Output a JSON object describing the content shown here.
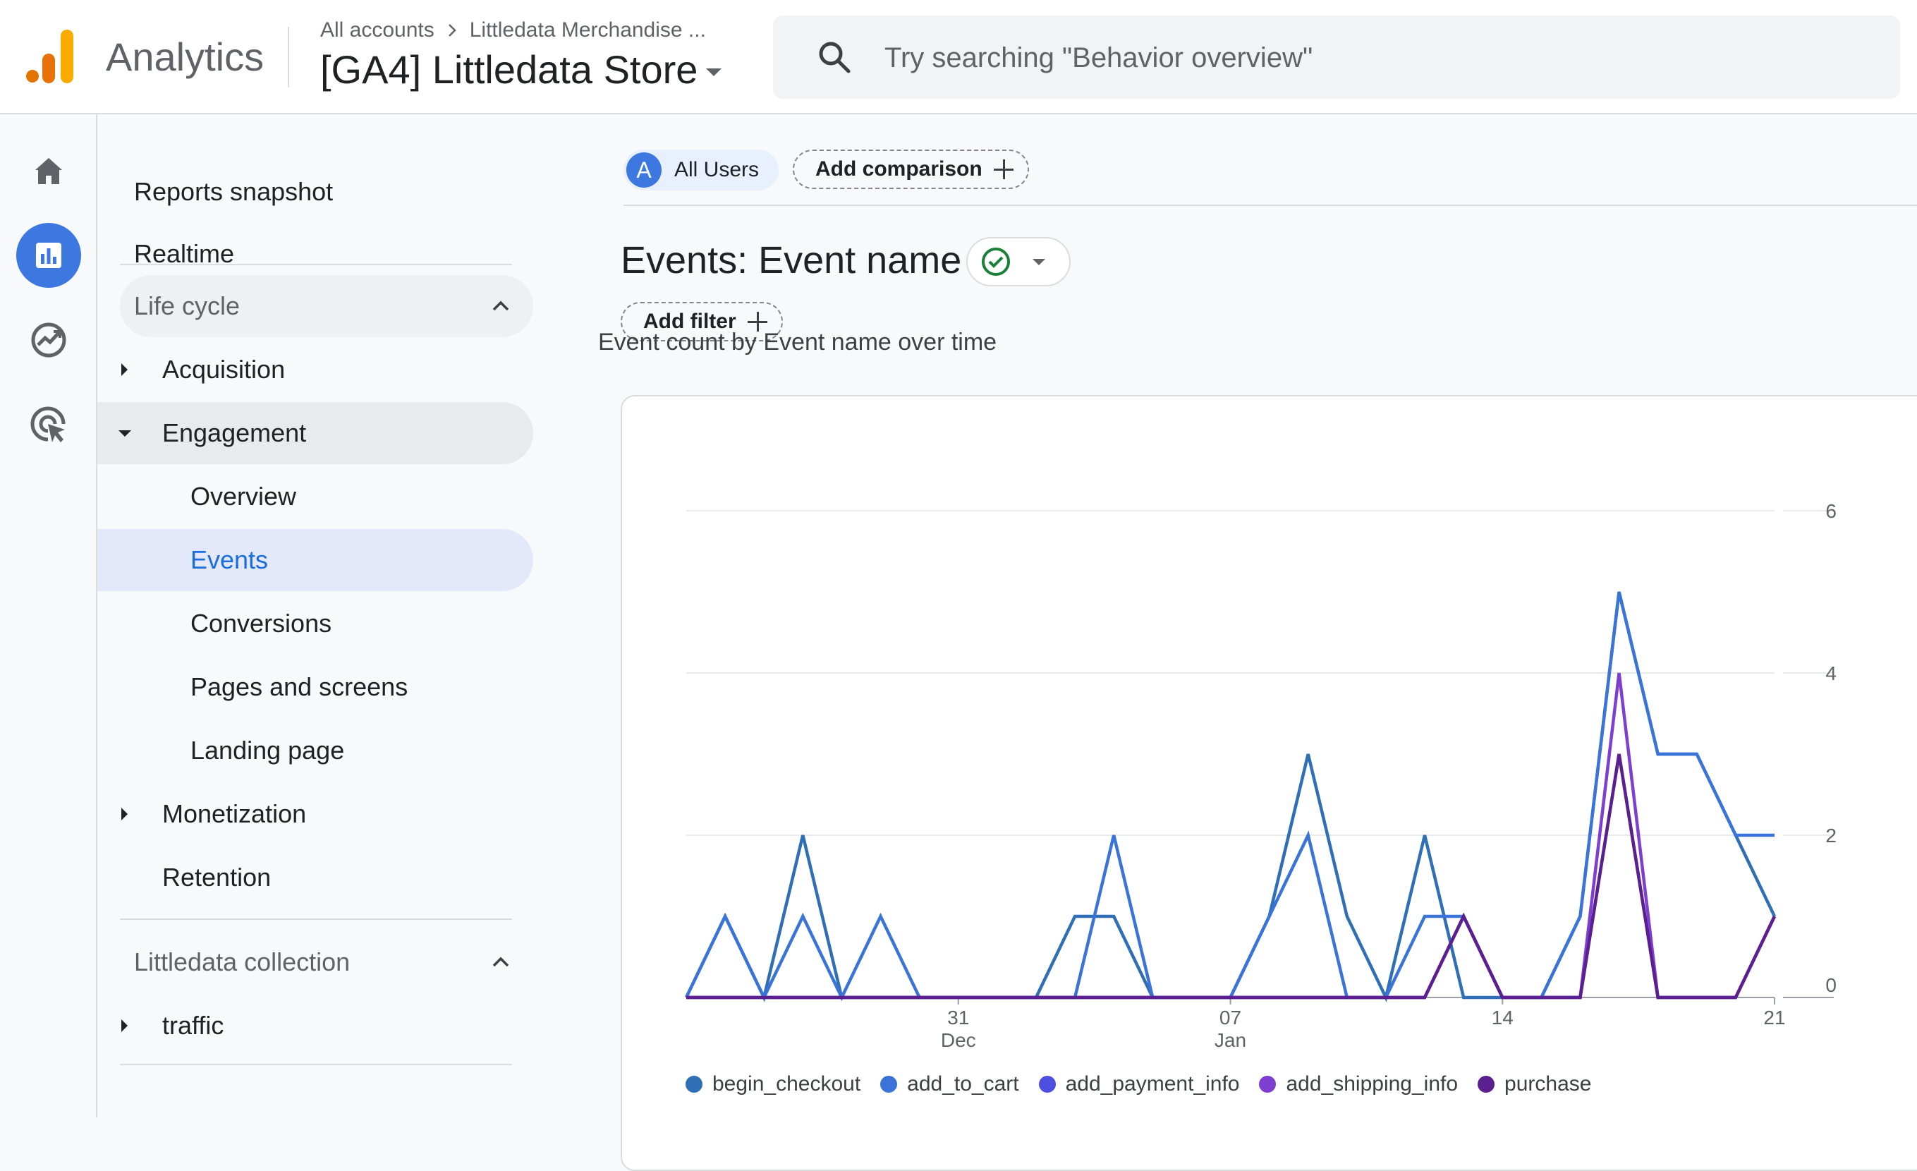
{
  "app": {
    "name": "Analytics"
  },
  "breadcrumb": {
    "accounts": "All accounts",
    "account": "Littledata Merchandise ..."
  },
  "property": {
    "name": "[GA4] Littledata Store"
  },
  "search": {
    "placeholder": "Try searching \"Behavior overview\""
  },
  "rail": {
    "items": [
      "home-icon",
      "reports-icon",
      "explore-icon",
      "advertising-icon"
    ],
    "active": "reports-icon"
  },
  "nav": {
    "reports_snapshot": "Reports snapshot",
    "realtime": "Realtime",
    "lifecycle": "Life cycle",
    "acquisition": "Acquisition",
    "engagement": "Engagement",
    "overview": "Overview",
    "events": "Events",
    "conversions": "Conversions",
    "pages_and_screens": "Pages and screens",
    "landing_page": "Landing page",
    "monetization": "Monetization",
    "retention": "Retention",
    "collection": "Littledata collection",
    "traffic": "traffic"
  },
  "comparison": {
    "badge": "A",
    "segment": "All Users",
    "add": "Add comparison"
  },
  "report": {
    "title": "Events: Event name",
    "add_filter": "Add filter"
  },
  "colors": {
    "accent": "#1a73e8",
    "begin_checkout": "#2f6fb5",
    "add_to_cart": "#3a74d8",
    "add_payment_info": "#4d4fe0",
    "add_shipping_info": "#7e3fd1",
    "purchase": "#5b1f8f"
  },
  "chart_data": {
    "type": "line",
    "title": "Event count by Event name over time",
    "x": [
      "Dec 24",
      "Dec 25",
      "Dec 26",
      "Dec 27",
      "Dec 28",
      "Dec 29",
      "Dec 30",
      "Dec 31",
      "Jan 01",
      "Jan 02",
      "Jan 03",
      "Jan 04",
      "Jan 05",
      "Jan 06",
      "Jan 07",
      "Jan 08",
      "Jan 09",
      "Jan 10",
      "Jan 11",
      "Jan 12",
      "Jan 13",
      "Jan 14",
      "Jan 15",
      "Jan 16",
      "Jan 17",
      "Jan 18",
      "Jan 19",
      "Jan 20",
      "Jan 21"
    ],
    "x_tick_labels": [
      {
        "at": "Dec 31",
        "line1": "31",
        "line2": "Dec"
      },
      {
        "at": "Jan 07",
        "line1": "07",
        "line2": "Jan"
      },
      {
        "at": "Jan 14",
        "line1": "14",
        "line2": ""
      },
      {
        "at": "Jan 21",
        "line1": "21",
        "line2": ""
      }
    ],
    "y_ticks": [
      0,
      2,
      4,
      6
    ],
    "ylim": [
      0,
      6
    ],
    "y_axis_side": "right",
    "grid": true,
    "legend_position": "bottom",
    "series": [
      {
        "name": "begin_checkout",
        "values": [
          0,
          1,
          0,
          2,
          0,
          0,
          0,
          0,
          0,
          0,
          1,
          1,
          0,
          0,
          0,
          1,
          3,
          1,
          0,
          2,
          0,
          0,
          0,
          1,
          5,
          3,
          3,
          2,
          1
        ]
      },
      {
        "name": "add_to_cart",
        "values": [
          0,
          1,
          0,
          1,
          0,
          1,
          0,
          0,
          0,
          0,
          0,
          2,
          0,
          0,
          0,
          1,
          2,
          0,
          0,
          1,
          1,
          0,
          0,
          1,
          5,
          3,
          3,
          2,
          2
        ]
      },
      {
        "name": "add_payment_info",
        "values": [
          0,
          0,
          0,
          0,
          0,
          0,
          0,
          0,
          0,
          0,
          0,
          0,
          0,
          0,
          0,
          0,
          0,
          0,
          0,
          0,
          1,
          0,
          0,
          0,
          3,
          0,
          0,
          0,
          1
        ]
      },
      {
        "name": "add_shipping_info",
        "values": [
          0,
          0,
          0,
          0,
          0,
          0,
          0,
          0,
          0,
          0,
          0,
          0,
          0,
          0,
          0,
          0,
          0,
          0,
          0,
          0,
          1,
          0,
          0,
          0,
          4,
          0,
          0,
          0,
          1
        ]
      },
      {
        "name": "purchase",
        "values": [
          0,
          0,
          0,
          0,
          0,
          0,
          0,
          0,
          0,
          0,
          0,
          0,
          0,
          0,
          0,
          0,
          0,
          0,
          0,
          0,
          1,
          0,
          0,
          0,
          3,
          0,
          0,
          0,
          1
        ]
      }
    ]
  }
}
